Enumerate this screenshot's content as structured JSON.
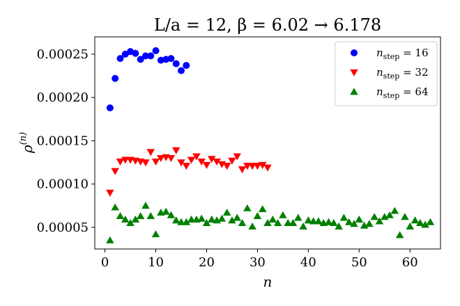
{
  "chart_data": {
    "type": "scatter",
    "title": "L/a = 12, β = 6.02 → 6.178",
    "xlabel": "n",
    "ylabel": "ρ(n)",
    "xlim": [
      -2,
      66
    ],
    "ylim": [
      2.5e-05,
      0.00027
    ],
    "x_ticks": [
      0,
      10,
      20,
      30,
      40,
      50,
      60
    ],
    "y_ticks": [
      5e-05,
      0.0001,
      0.00015,
      0.0002,
      0.00025
    ],
    "y_tick_labels": [
      "0.00005",
      "0.00010",
      "0.00015",
      "0.00020",
      "0.00025"
    ],
    "grid": false,
    "legend_position": "top-right",
    "series": [
      {
        "name": "n_step = 16",
        "legend_main": "n",
        "legend_sub": "step",
        "legend_rest": " = 16",
        "color": "#0000ff",
        "marker": "circle",
        "x": [
          1,
          2,
          3,
          4,
          5,
          6,
          7,
          8,
          9,
          10,
          11,
          12,
          13,
          14,
          15,
          16
        ],
        "y": [
          0.000188,
          0.000222,
          0.000245,
          0.00025,
          0.000253,
          0.000251,
          0.000244,
          0.000248,
          0.000248,
          0.000254,
          0.000243,
          0.000244,
          0.000245,
          0.000239,
          0.000231,
          0.000237
        ]
      },
      {
        "name": "n_step = 32",
        "legend_main": "n",
        "legend_sub": "step",
        "legend_rest": " = 32",
        "color": "#ff0000",
        "marker": "triangle-down",
        "x": [
          1,
          2,
          3,
          4,
          5,
          6,
          7,
          8,
          9,
          10,
          11,
          12,
          13,
          14,
          15,
          16,
          17,
          18,
          19,
          20,
          21,
          22,
          23,
          24,
          25,
          26,
          27,
          28,
          29,
          30,
          31,
          32
        ],
        "y": [
          9e-05,
          0.000115,
          0.000126,
          0.000128,
          0.000128,
          0.000127,
          0.000126,
          0.000125,
          0.000137,
          0.000126,
          0.00013,
          0.000131,
          0.00013,
          0.000139,
          0.000125,
          0.000121,
          0.000128,
          0.000132,
          0.000126,
          0.000122,
          0.000129,
          0.000126,
          0.000123,
          0.000121,
          0.000127,
          0.000132,
          0.000117,
          0.000121,
          0.000121,
          0.000121,
          0.000122,
          0.000119
        ]
      },
      {
        "name": "n_step = 64",
        "legend_main": "n",
        "legend_sub": "step",
        "legend_rest": " = 64",
        "color": "#008000",
        "marker": "triangle-up",
        "x": [
          1,
          2,
          3,
          4,
          5,
          6,
          7,
          8,
          9,
          10,
          11,
          12,
          13,
          14,
          15,
          16,
          17,
          18,
          19,
          20,
          21,
          22,
          23,
          24,
          25,
          26,
          27,
          28,
          29,
          30,
          31,
          32,
          33,
          34,
          35,
          36,
          37,
          38,
          39,
          40,
          41,
          42,
          43,
          44,
          45,
          46,
          47,
          48,
          49,
          50,
          51,
          52,
          53,
          54,
          55,
          56,
          57,
          58,
          59,
          60,
          61,
          62,
          63,
          64
        ],
        "y": [
          3.5e-05,
          7.3e-05,
          6.3e-05,
          5.9e-05,
          5.5e-05,
          5.9e-05,
          6.3e-05,
          7.5e-05,
          6.3e-05,
          4.2e-05,
          6.7e-05,
          6.8e-05,
          6.4e-05,
          5.8e-05,
          5.6e-05,
          5.6e-05,
          5.9e-05,
          5.9e-05,
          6e-05,
          5.5e-05,
          5.9e-05,
          5.8e-05,
          6e-05,
          6.7e-05,
          5.8e-05,
          6.1e-05,
          5.5e-05,
          7.2e-05,
          5.1e-05,
          6.3e-05,
          7.1e-05,
          5.5e-05,
          5.9e-05,
          5.5e-05,
          6.4e-05,
          5.5e-05,
          5.5e-05,
          6.1e-05,
          5.1e-05,
          5.8e-05,
          5.7e-05,
          5.7e-05,
          5.5e-05,
          5.6e-05,
          5.5e-05,
          5.1e-05,
          6.1e-05,
          5.6e-05,
          5.4e-05,
          5.9e-05,
          5.2e-05,
          5.4e-05,
          6.2e-05,
          5.7e-05,
          6.2e-05,
          6.4e-05,
          6.9e-05,
          4.1e-05,
          6.2e-05,
          5.1e-05,
          5.8e-05,
          5.5e-05,
          5.3e-05,
          5.6e-05
        ]
      }
    ]
  }
}
